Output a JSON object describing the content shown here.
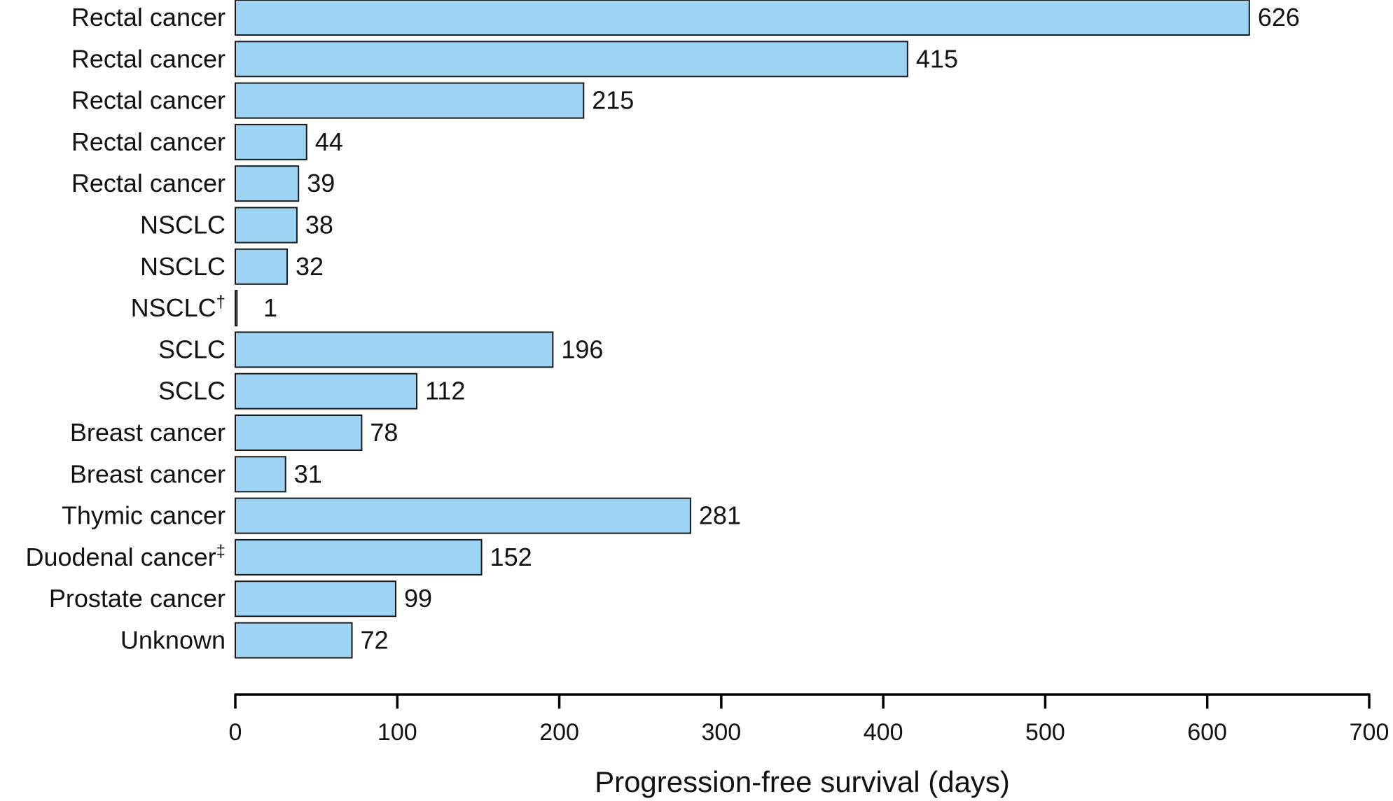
{
  "chart_data": {
    "type": "bar",
    "orientation": "horizontal",
    "categories": [
      "Rectal cancer",
      "Rectal cancer",
      "Rectal cancer",
      "Rectal cancer",
      "Rectal cancer",
      "NSCLC",
      "NSCLC",
      "NSCLC",
      "SCLC",
      "SCLC",
      "Breast cancer",
      "Breast cancer",
      "Thymic cancer",
      "Duodenal cancer",
      "Prostate cancer",
      "Unknown"
    ],
    "category_marks": [
      "",
      "",
      "",
      "",
      "",
      "",
      "",
      "†",
      "",
      "",
      "",
      "",
      "",
      "‡",
      "",
      ""
    ],
    "values": [
      626,
      415,
      215,
      44,
      39,
      38,
      32,
      1,
      196,
      112,
      78,
      31,
      281,
      152,
      99,
      72
    ],
    "value_labels": [
      "626",
      "415",
      "215",
      "44",
      "39",
      "38",
      "32",
      "1",
      "196",
      "112",
      "78",
      "31",
      "281",
      "152",
      "99",
      "72"
    ],
    "title": "",
    "xlabel": "Progression-free survival (days)",
    "ylabel": "",
    "xlim": [
      0,
      700
    ],
    "xticks": [
      0,
      100,
      200,
      300,
      400,
      500,
      600,
      700
    ],
    "xtick_labels": [
      "0",
      "100",
      "200",
      "300",
      "400",
      "500",
      "600",
      "700"
    ],
    "grid": false,
    "legend": "none",
    "bar_color": "#9dd3f3",
    "bar_edge_color": "#1a1a1a"
  }
}
